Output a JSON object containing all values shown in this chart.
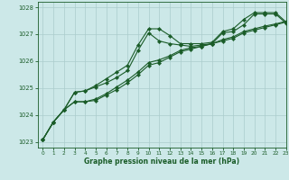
{
  "title": "Graphe pression niveau de la mer (hPa)",
  "bg_color": "#cce8e8",
  "grid_color": "#aacccc",
  "line_color": "#1a5c28",
  "xlim": [
    -0.5,
    23
  ],
  "ylim": [
    1022.8,
    1028.2
  ],
  "yticks": [
    1023,
    1024,
    1025,
    1026,
    1027,
    1028
  ],
  "xticks": [
    0,
    1,
    2,
    3,
    4,
    5,
    6,
    7,
    8,
    9,
    10,
    11,
    12,
    13,
    14,
    15,
    16,
    17,
    18,
    19,
    20,
    21,
    22,
    23
  ],
  "series": [
    [
      1023.1,
      1023.75,
      1024.2,
      1024.85,
      1024.9,
      1025.1,
      1025.35,
      1025.6,
      1025.85,
      1026.6,
      1027.2,
      1027.2,
      1026.95,
      1026.65,
      1026.65,
      1026.65,
      1026.7,
      1027.1,
      1027.2,
      1027.55,
      1027.8,
      1027.8,
      1027.8,
      1027.45
    ],
    [
      1023.1,
      1023.75,
      1024.2,
      1024.85,
      1024.9,
      1025.05,
      1025.2,
      1025.4,
      1025.65,
      1026.4,
      1027.05,
      1026.75,
      1026.65,
      1026.6,
      1026.55,
      1026.6,
      1026.65,
      1027.05,
      1027.1,
      1027.35,
      1027.75,
      1027.75,
      1027.75,
      1027.4
    ],
    [
      1023.1,
      1023.75,
      1024.2,
      1024.5,
      1024.5,
      1024.55,
      1024.75,
      1024.95,
      1025.2,
      1025.5,
      1025.85,
      1025.95,
      1026.15,
      1026.35,
      1026.45,
      1026.55,
      1026.65,
      1026.75,
      1026.85,
      1027.05,
      1027.15,
      1027.25,
      1027.35,
      1027.45
    ],
    [
      1023.1,
      1023.75,
      1024.2,
      1024.5,
      1024.5,
      1024.6,
      1024.8,
      1025.05,
      1025.3,
      1025.6,
      1025.95,
      1026.05,
      1026.2,
      1026.4,
      1026.5,
      1026.55,
      1026.65,
      1026.8,
      1026.9,
      1027.1,
      1027.2,
      1027.3,
      1027.38,
      1027.48
    ]
  ],
  "marker": "D",
  "markersize": 2.2,
  "linewidth": 0.8
}
